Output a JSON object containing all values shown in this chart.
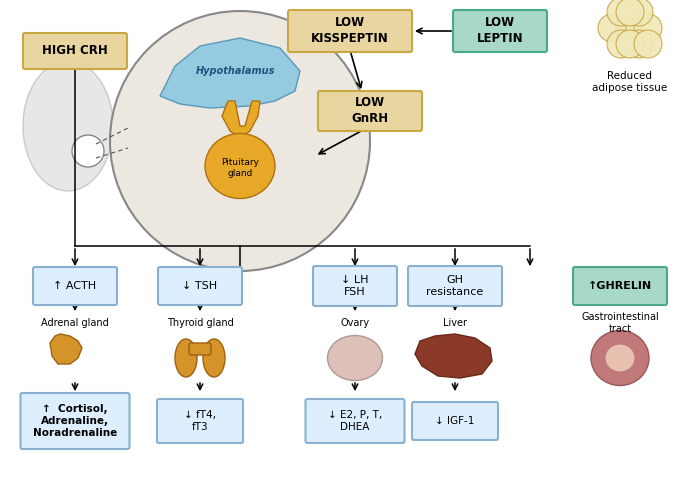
{
  "bg_color": "#ffffff",
  "box_tan_fill": "#e8d5a0",
  "box_tan_border": "#c8a840",
  "box_teal_fill": "#a8d8c8",
  "box_teal_border": "#4aaa88",
  "box_blue_fill": "#ddeeff",
  "box_blue_border": "#8ab0d0",
  "hypothalamus_color": "#8cc8e0",
  "pituitary_color": "#e8a828",
  "brain_color": "#d8d8d8",
  "circle_bg": "#ece8e0",
  "fat_fill": "#f0e8b8",
  "fat_border": "#c8a840",
  "adrenal_color": "#d4942a",
  "thyroid_color": "#d4942a",
  "ovary_color": "#ddc0b8",
  "liver_color": "#8b3a2a",
  "gi_color": "#c07878",
  "top_labels": {
    "high_crh": "HIGH CRH",
    "low_kiss": "LOW\nKISSPEPTIN",
    "low_leptin": "LOW\nLEPTIN",
    "low_gnrh": "LOW\nGnRH"
  },
  "mid_labels": [
    "↑ ACTH",
    "↓ TSH",
    "↓ LH\nFSH",
    "GH\nresistance",
    "↑GHRELIN"
  ],
  "organ_labels": [
    "Adrenal gland",
    "Thyroid gland",
    "Ovary",
    "Liver",
    "Gastrointestinal\ntract"
  ],
  "bottom_labels": [
    "↑  Cortisol,\nAdrenaline,\nNoradrenaline",
    "↓ fT4,\nfT3",
    "↓ E2, P, T,\nDHEA",
    "↓ IGF-1"
  ],
  "hypothalamus_text": "Hypothalamus",
  "pituitary_text": "Pituitary\ngland",
  "reduced_adipose_text": "Reduced\nadipose tissue"
}
